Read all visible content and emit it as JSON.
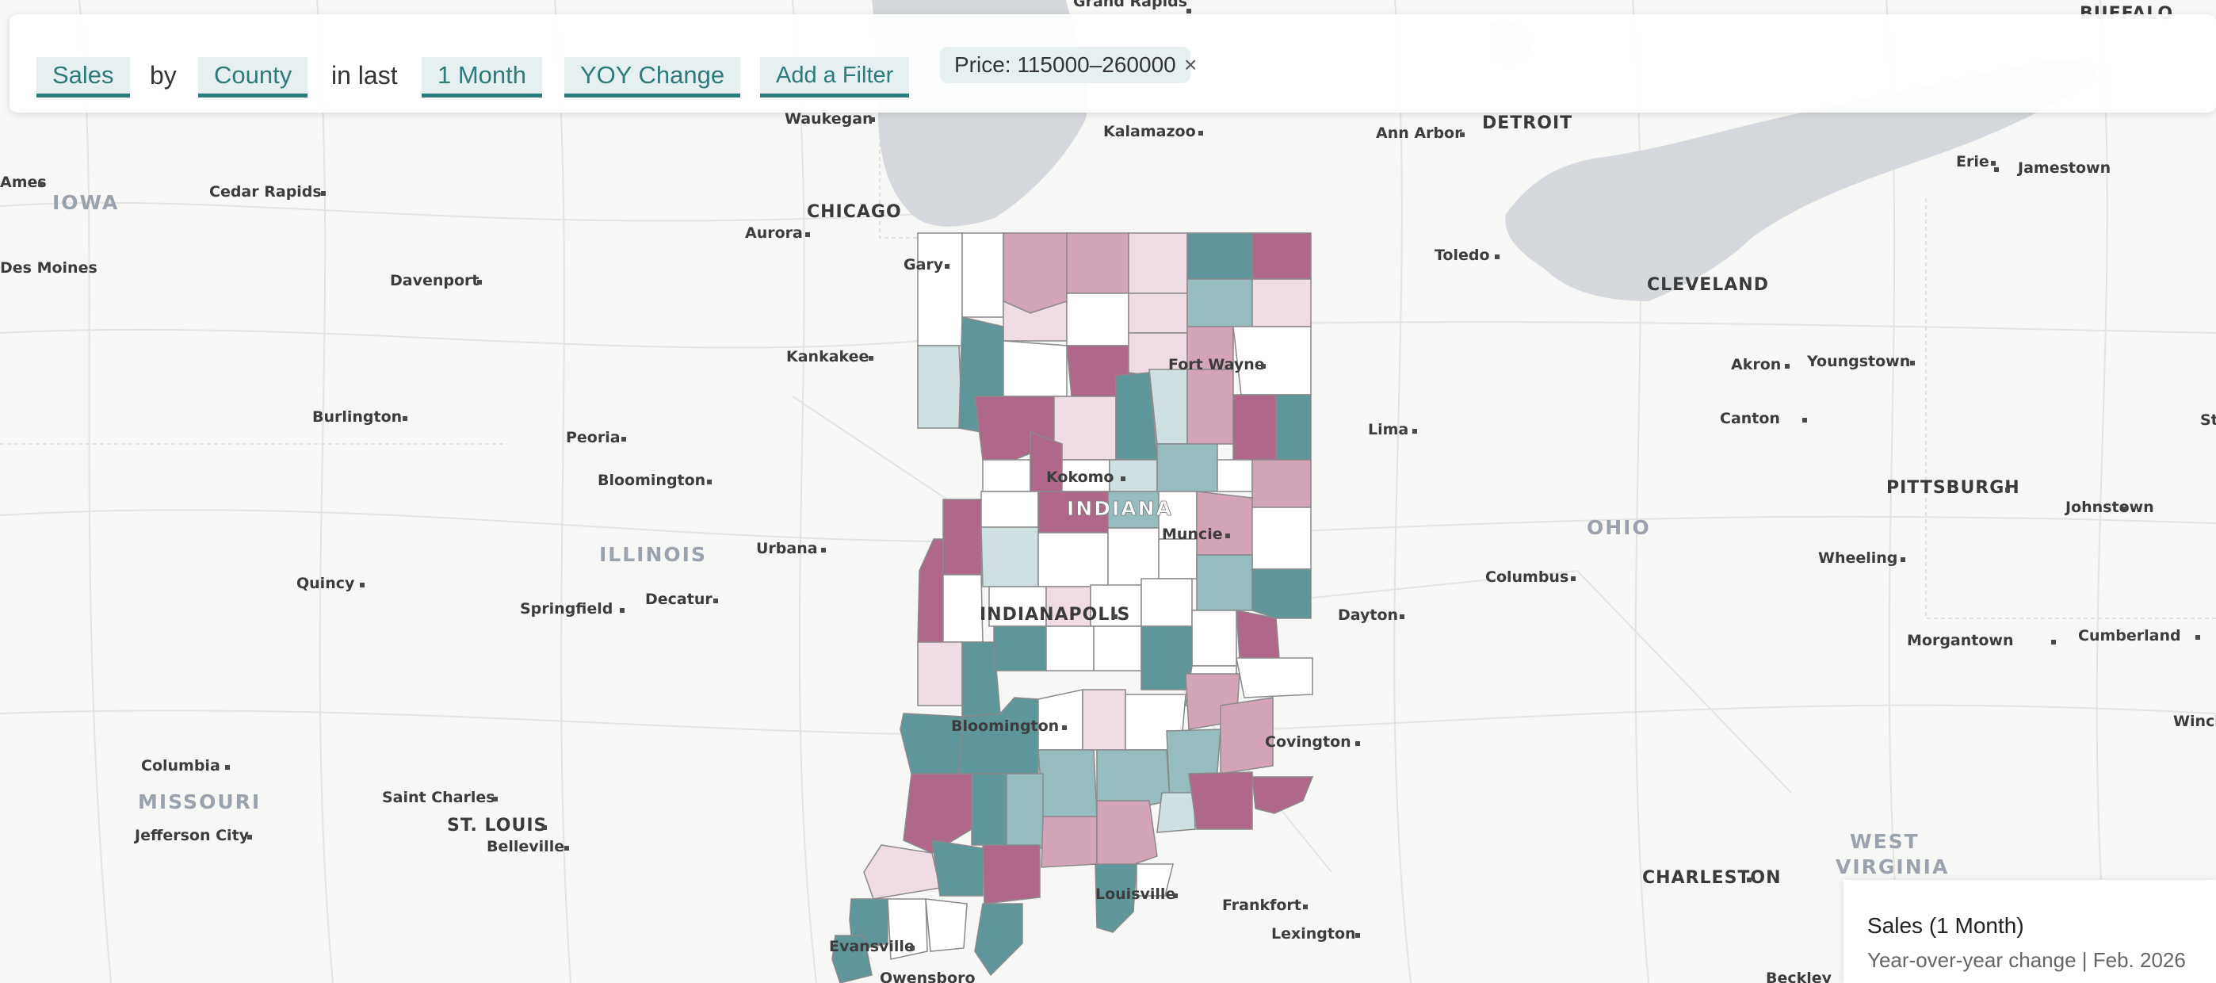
{
  "toolbar": {
    "metric": "Sales",
    "by_word": "by",
    "geography": "County",
    "in_last_word": "in last",
    "period": "1 Month",
    "comparison": "YOY Change",
    "add_filter": "Add a Filter",
    "filter_chip": "Price: 115000–260000",
    "filter_remove": "×"
  },
  "legend": {
    "title": "Sales (1 Month)",
    "subtitle": "Year-over-year change | Feb. 2026"
  },
  "map_labels": {
    "states": [
      "IOWA",
      "ILLINOIS",
      "INDIANA",
      "OHIO",
      "MISSOURI",
      "WEST",
      "VIRGINIA"
    ],
    "cities_major": [
      "CHICAGO",
      "DETROIT",
      "CLEVELAND",
      "PITTSBURGH",
      "INDIANAPOLIS",
      "ST. LOUIS",
      "CHARLESTON",
      "BUFFALO"
    ],
    "cities": [
      "Grand Rapids",
      "Waukegan",
      "Kalamazoo",
      "Ann Arbor",
      "Erie",
      "Jamestown",
      "Ames",
      "Cedar Rapids",
      "Aurora",
      "Gary",
      "Toledo",
      "Davenport",
      "Kankakee",
      "Fort Wayne",
      "Akron",
      "Youngstown",
      "Burlington",
      "Lima",
      "Canton",
      "Peoria",
      "Kokomo",
      "Bloomington",
      "Muncie",
      "Johnstown",
      "Urbana",
      "Wheeling",
      "Columbus",
      "Quincy",
      "Springfield",
      "Decatur",
      "Dayton",
      "Morgantown",
      "Cumberland",
      "Bloomington",
      "Covington",
      "Columbia",
      "Saint Charles",
      "Jefferson City",
      "Belleville",
      "Louisville",
      "Frankfort",
      "Lexington",
      "Evansville",
      "Owensboro",
      "Beckley",
      "Des Moines",
      "Winchester",
      "State College"
    ]
  },
  "colors": {
    "strong_teal": "#5e969a",
    "medium_teal": "#96bcbf",
    "light_teal": "#cfe0e2",
    "neutral": "#ffffff",
    "light_pink": "#f0dce4",
    "medium_pink": "#d3a3b7",
    "strong_pink": "#b0688a",
    "water": "#d5d8dc"
  }
}
